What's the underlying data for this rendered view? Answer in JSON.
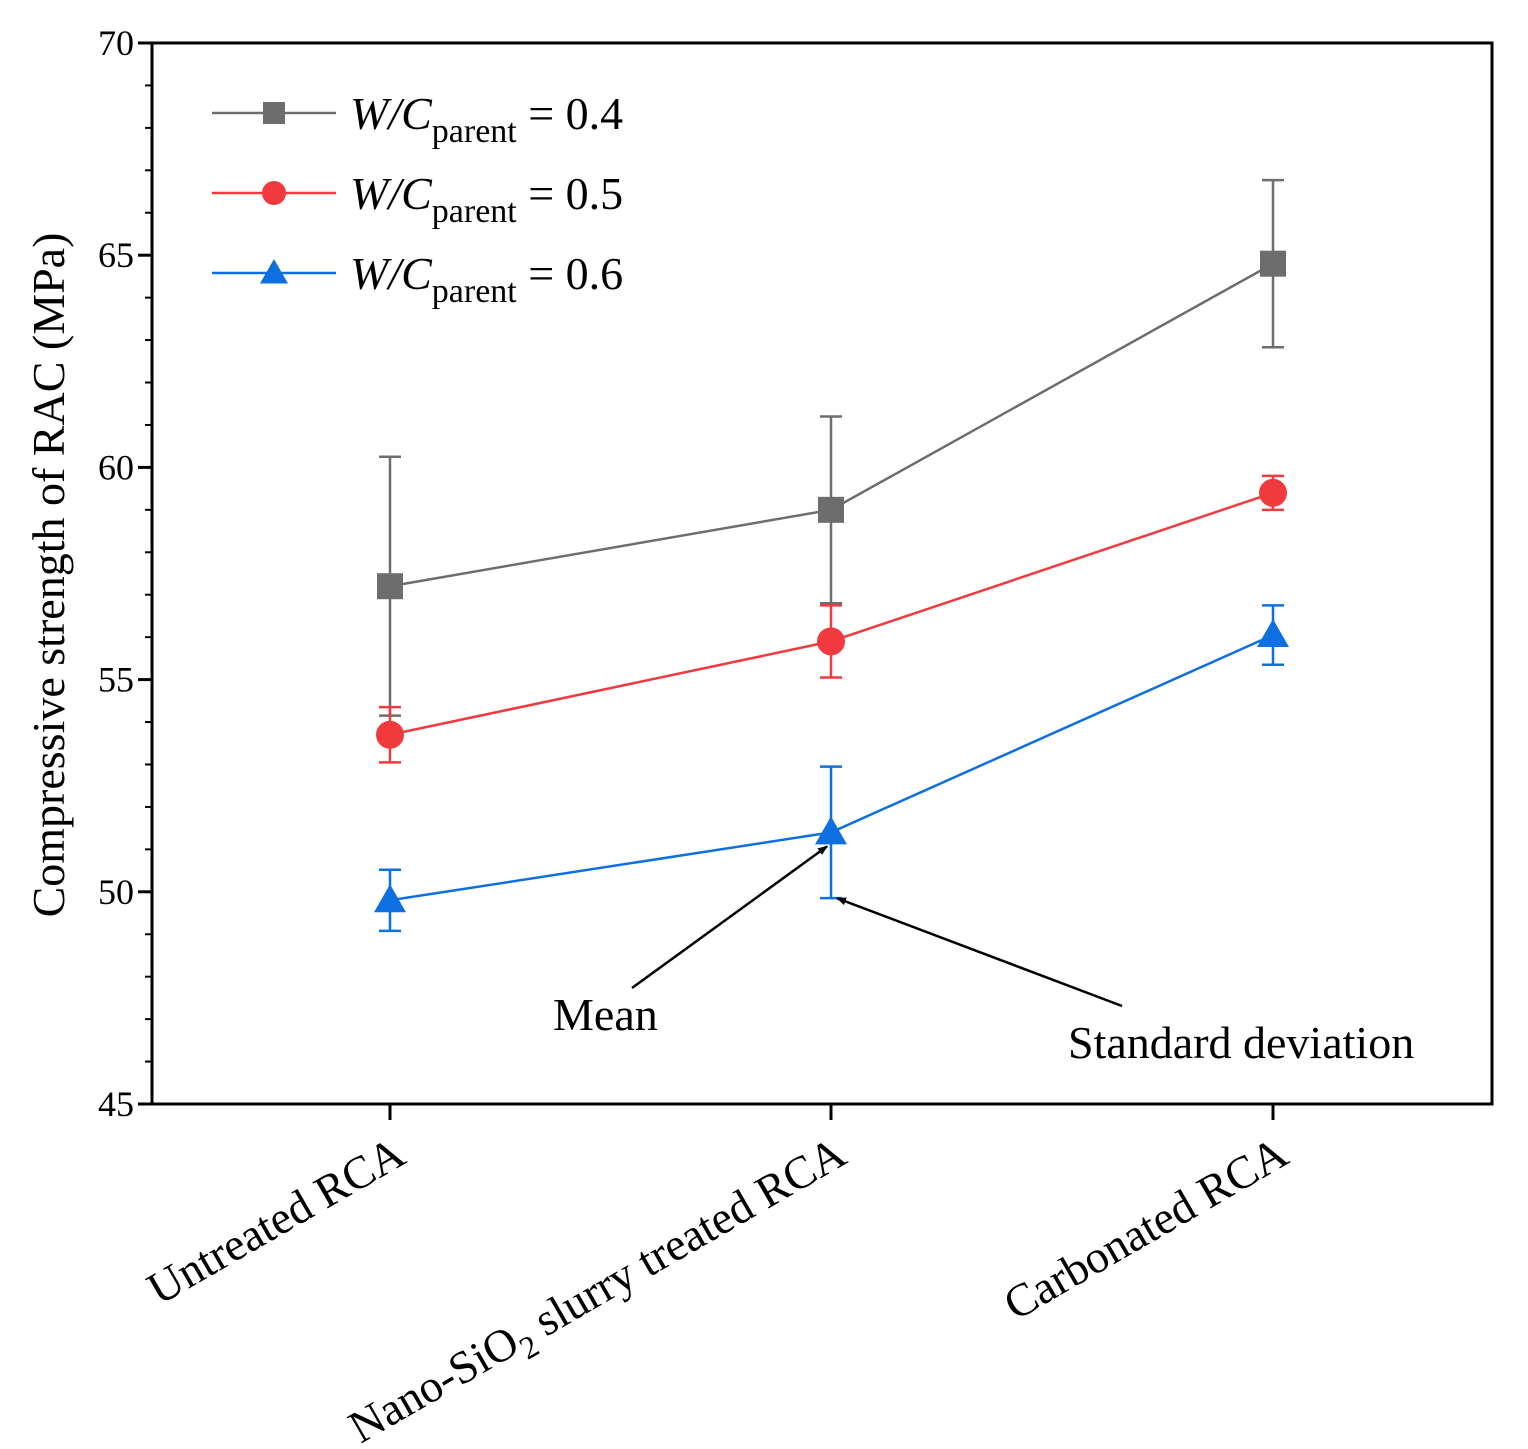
{
  "chart_data": {
    "type": "line",
    "title": "",
    "xlabel": "",
    "ylabel": "Compressive strength of RAC (MPa)",
    "ylim": [
      45,
      70
    ],
    "yticks": [
      45,
      50,
      55,
      60,
      65,
      70
    ],
    "ytick_labels": [
      "45",
      "50",
      "55",
      "60",
      "65",
      "70"
    ],
    "categories": [
      {
        "label": "Untreated RCA",
        "sub": "",
        "tail": ""
      },
      {
        "label": "Nano-SiO",
        "sub": "2",
        "tail": " slurry treated RCA"
      },
      {
        "label": "Carbonated RCA",
        "sub": "",
        "tail": ""
      }
    ],
    "legend_position": "top-left",
    "series": [
      {
        "name": "W/Cparent = 0.4",
        "legend_italic": "W/C",
        "legend_sub": "parent",
        "legend_value": " = 0.4",
        "marker": "square",
        "color": "#6d6d6d",
        "values": [
          57.2,
          59.0,
          64.8
        ],
        "errors": [
          3.05,
          2.2,
          1.97
        ]
      },
      {
        "name": "W/Cparent = 0.5",
        "legend_italic": "W/C",
        "legend_sub": "parent",
        "legend_value": " = 0.5",
        "marker": "circle",
        "color": "#f03a3e",
        "values": [
          53.7,
          55.9,
          59.4
        ],
        "errors": [
          0.65,
          0.85,
          0.4
        ]
      },
      {
        "name": "W/Cparent = 0.6",
        "legend_italic": "W/C",
        "legend_sub": "parent",
        "legend_value": " = 0.6",
        "marker": "triangle",
        "color": "#0d6fe0",
        "values": [
          49.8,
          51.4,
          56.05
        ],
        "errors": [
          0.72,
          1.55,
          0.7
        ]
      }
    ],
    "annotations": [
      {
        "text": "Mean",
        "points_to": "mean"
      },
      {
        "text": "Standard deviation",
        "points_to": "error-bar"
      }
    ]
  }
}
